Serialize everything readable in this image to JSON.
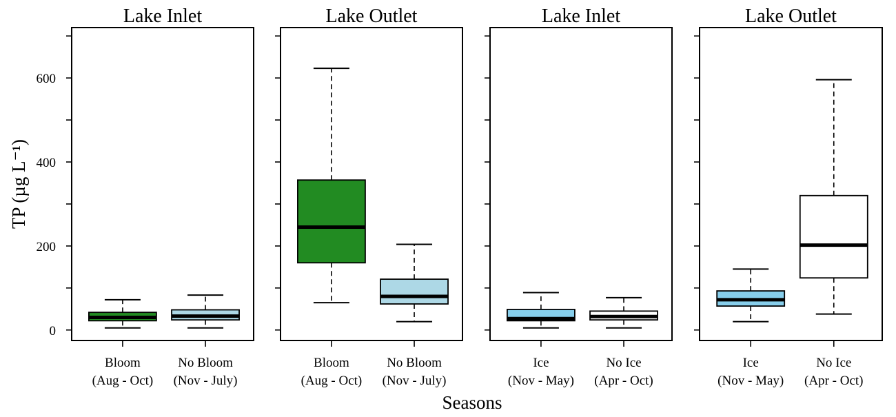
{
  "chart_data": {
    "type": "boxplot",
    "ylabel": "TP (µg L⁻¹)",
    "xlabel": "Seasons",
    "ylim": [
      -25,
      720
    ],
    "y_ticks": [
      0,
      200,
      400,
      600
    ],
    "y_minor_ticks": [
      100,
      300,
      500,
      700
    ],
    "panels": [
      {
        "title": "Lake Inlet",
        "groups": [
          {
            "label_line1": "Bloom",
            "label_line2": "(Aug - Oct)",
            "color": "#228b22",
            "whisker_low": 5,
            "q1": 22,
            "median": 30,
            "q3": 42,
            "whisker_high": 72
          },
          {
            "label_line1": "No Bloom",
            "label_line2": "(Nov - July)",
            "color": "#add8e6",
            "whisker_low": 5,
            "q1": 24,
            "median": 33,
            "q3": 48,
            "whisker_high": 83
          }
        ]
      },
      {
        "title": "Lake Outlet",
        "groups": [
          {
            "label_line1": "Bloom",
            "label_line2": "(Aug - Oct)",
            "color": "#228b22",
            "whisker_low": 65,
            "q1": 160,
            "median": 245,
            "q3": 357,
            "whisker_high": 623
          },
          {
            "label_line1": "No Bloom",
            "label_line2": "(Nov - July)",
            "color": "#add8e6",
            "whisker_low": 20,
            "q1": 62,
            "median": 80,
            "q3": 121,
            "whisker_high": 204
          }
        ]
      },
      {
        "title": "Lake Inlet",
        "groups": [
          {
            "label_line1": "Ice",
            "label_line2": "(Nov - May)",
            "color": "#87ceeb",
            "whisker_low": 5,
            "q1": 22,
            "median": 27,
            "q3": 49,
            "whisker_high": 89
          },
          {
            "label_line1": "No Ice",
            "label_line2": "(Apr - Oct)",
            "color": "#ffffff",
            "whisker_low": 5,
            "q1": 24,
            "median": 32,
            "q3": 45,
            "whisker_high": 77
          }
        ]
      },
      {
        "title": "Lake Outlet",
        "groups": [
          {
            "label_line1": "Ice",
            "label_line2": "(Nov - May)",
            "color": "#87ceeb",
            "whisker_low": 20,
            "q1": 57,
            "median": 72,
            "q3": 93,
            "whisker_high": 145
          },
          {
            "label_line1": "No Ice",
            "label_line2": "(Apr - Oct)",
            "color": "#ffffff",
            "whisker_low": 38,
            "q1": 124,
            "median": 202,
            "q3": 320,
            "whisker_high": 596
          }
        ]
      }
    ]
  }
}
